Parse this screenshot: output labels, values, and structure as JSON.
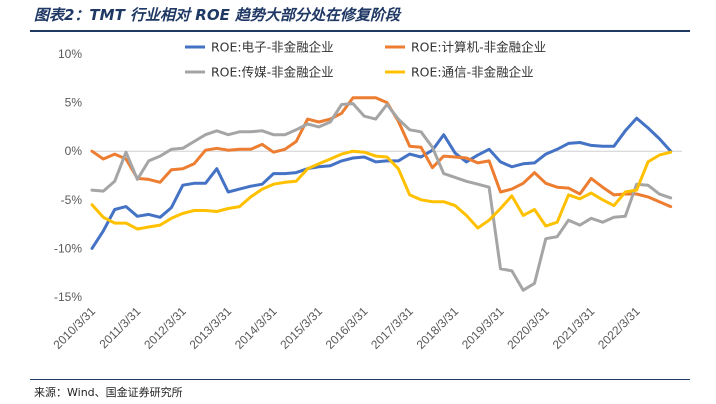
{
  "figure": {
    "title": "图表2：TMT 行业相对 ROE 趋势大部分处在修复阶段",
    "source": "来源：Wind、国金证券研究所"
  },
  "chart_data": {
    "type": "line",
    "title": "图表2：TMT 行业相对 ROE 趋势大部分处在修复阶段",
    "xlabel": "",
    "ylabel": "",
    "ylim": [
      -15,
      10
    ],
    "yticks": [
      10,
      5,
      0,
      -5,
      -10,
      -15
    ],
    "ytick_labels": [
      "10%",
      "5%",
      "0%",
      "-5%",
      "-10%",
      "-15%"
    ],
    "xlim": [
      2010.25,
      2023.25
    ],
    "xticks": [
      2010.25,
      2011.25,
      2012.25,
      2013.25,
      2014.25,
      2015.25,
      2016.25,
      2017.25,
      2018.25,
      2019.25,
      2020.25,
      2021.25,
      2022.25
    ],
    "xtick_labels": [
      "2010/3/31",
      "2011/3/31",
      "2012/3/31",
      "2013/3/31",
      "2014/3/31",
      "2015/3/31",
      "2016/3/31",
      "2017/3/31",
      "2018/3/31",
      "2019/3/31",
      "2020/3/31",
      "2021/3/31",
      "2022/3/31"
    ],
    "grid": false,
    "legend_position": "top",
    "x": [
      2010.25,
      2010.5,
      2010.75,
      2011.0,
      2011.25,
      2011.5,
      2011.75,
      2012.0,
      2012.25,
      2012.5,
      2012.75,
      2013.0,
      2013.25,
      2013.5,
      2013.75,
      2014.0,
      2014.25,
      2014.5,
      2014.75,
      2015.0,
      2015.25,
      2015.5,
      2015.75,
      2016.0,
      2016.25,
      2016.5,
      2016.75,
      2017.0,
      2017.25,
      2017.5,
      2017.75,
      2018.0,
      2018.25,
      2018.5,
      2018.75,
      2019.0,
      2019.25,
      2019.5,
      2019.75,
      2020.0,
      2020.25,
      2020.5,
      2020.75,
      2021.0,
      2021.25,
      2021.5,
      2021.75,
      2022.0,
      2022.25,
      2022.5,
      2022.75,
      2023.0
    ],
    "series": [
      {
        "name": "ROE:电子-非金融企业",
        "color": "#4472c4",
        "values": [
          -10.0,
          -8.2,
          -6.0,
          -5.7,
          -6.7,
          -6.5,
          -6.8,
          -5.8,
          -3.5,
          -3.3,
          -3.3,
          -1.8,
          -4.2,
          -3.9,
          -3.6,
          -3.4,
          -2.3,
          -2.3,
          -2.2,
          -1.8,
          -1.6,
          -1.5,
          -1.0,
          -0.7,
          -0.6,
          -1.1,
          -1.0,
          -1.0,
          -0.3,
          -0.6,
          0.1,
          1.7,
          -0.2,
          -1.1,
          -0.4,
          0.2,
          -1.1,
          -1.6,
          -1.3,
          -1.2,
          -0.3,
          0.2,
          0.8,
          0.9,
          0.6,
          0.5,
          0.5,
          2.1,
          3.4,
          2.4,
          1.3,
          0.0
        ]
      },
      {
        "name": "ROE:计算机-非金融企业",
        "color": "#ed7d31",
        "values": [
          0.0,
          -0.8,
          -0.3,
          -0.8,
          -2.8,
          -2.9,
          -3.2,
          -1.9,
          -1.8,
          -1.3,
          0.1,
          0.3,
          0.1,
          0.2,
          0.2,
          0.7,
          -0.1,
          0.2,
          1.0,
          3.3,
          3.0,
          3.3,
          3.9,
          5.5,
          5.5,
          5.5,
          5.0,
          3.1,
          0.5,
          0.4,
          -1.7,
          -0.5,
          -0.6,
          -0.7,
          -1.2,
          -1.0,
          -4.2,
          -3.9,
          -3.3,
          -2.2,
          -3.3,
          -3.7,
          -3.8,
          -4.4,
          -2.8,
          -3.7,
          -4.5,
          -4.4,
          -4.4,
          -4.7,
          -5.2,
          -5.7
        ]
      },
      {
        "name": "ROE:传媒-非金融企业",
        "color": "#a5a5a5",
        "values": [
          -4.0,
          -4.1,
          -3.1,
          -0.1,
          -2.9,
          -1.0,
          -0.5,
          0.2,
          0.3,
          1.0,
          1.7,
          2.1,
          1.7,
          2.0,
          2.0,
          2.1,
          1.7,
          1.7,
          2.2,
          2.8,
          2.5,
          3.0,
          4.8,
          4.9,
          3.6,
          3.3,
          4.8,
          3.3,
          2.2,
          2.0,
          0.4,
          -2.3,
          -2.7,
          -3.1,
          -3.4,
          -3.7,
          -12.1,
          -12.3,
          -14.3,
          -13.6,
          -9.0,
          -8.8,
          -7.1,
          -7.6,
          -6.9,
          -7.3,
          -6.8,
          -6.7,
          -3.4,
          -3.5,
          -4.4,
          -4.8
        ]
      },
      {
        "name": "ROE:通信-非金融企业",
        "color": "#ffc000",
        "values": [
          -5.5,
          -6.8,
          -7.4,
          -7.4,
          -8.0,
          -7.8,
          -7.6,
          -6.9,
          -6.4,
          -6.1,
          -6.1,
          -6.2,
          -5.9,
          -5.7,
          -4.7,
          -3.9,
          -3.4,
          -3.2,
          -3.1,
          -1.8,
          -1.3,
          -0.8,
          -0.3,
          0.0,
          -0.1,
          -0.5,
          -0.6,
          -1.8,
          -4.5,
          -5.0,
          -5.2,
          -5.2,
          -5.6,
          -6.6,
          -7.9,
          -7.1,
          -5.9,
          -4.6,
          -6.6,
          -6.0,
          -7.7,
          -7.3,
          -4.5,
          -4.9,
          -4.3,
          -5.0,
          -5.6,
          -4.2,
          -4.0,
          -1.1,
          -0.4,
          -0.1
        ]
      }
    ]
  }
}
